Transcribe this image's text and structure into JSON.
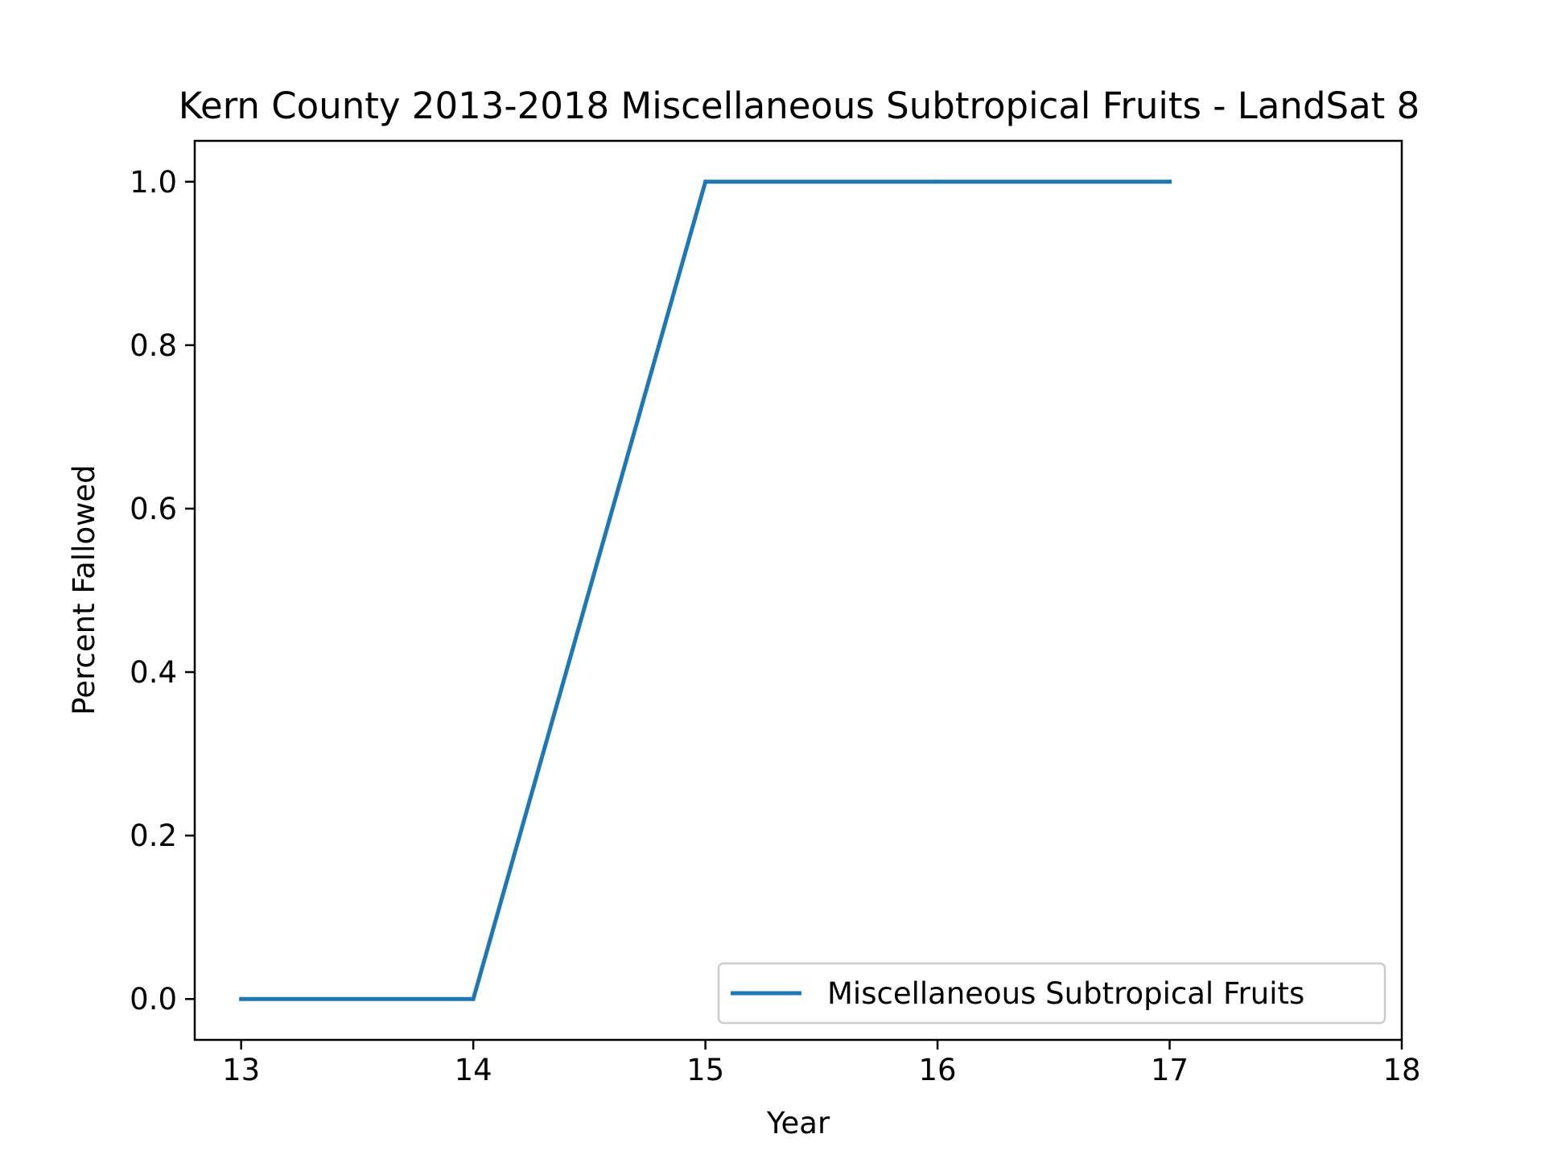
{
  "chart_data": {
    "type": "line",
    "title": "Kern County 2013-2018 Miscellaneous Subtropical Fruits - LandSat 8",
    "xlabel": "Year",
    "ylabel": "Percent Fallowed",
    "xlim": [
      12.8,
      18
    ],
    "ylim": [
      -0.05,
      1.05
    ],
    "xticks": [
      13,
      14,
      15,
      16,
      17,
      18
    ],
    "xtick_labels": [
      "13",
      "14",
      "15",
      "16",
      "17",
      "18"
    ],
    "yticks": [
      0.0,
      0.2,
      0.4,
      0.6,
      0.8,
      1.0
    ],
    "ytick_labels": [
      "0.0",
      "0.2",
      "0.4",
      "0.6",
      "0.8",
      "1.0"
    ],
    "grid": false,
    "legend_position": "lower-right",
    "series": [
      {
        "name": "Miscellaneous Subtropical Fruits",
        "color": "#1f77b4",
        "x": [
          13,
          14,
          15,
          16,
          17
        ],
        "y": [
          0.0,
          0.0,
          1.0,
          1.0,
          1.0
        ]
      }
    ]
  }
}
